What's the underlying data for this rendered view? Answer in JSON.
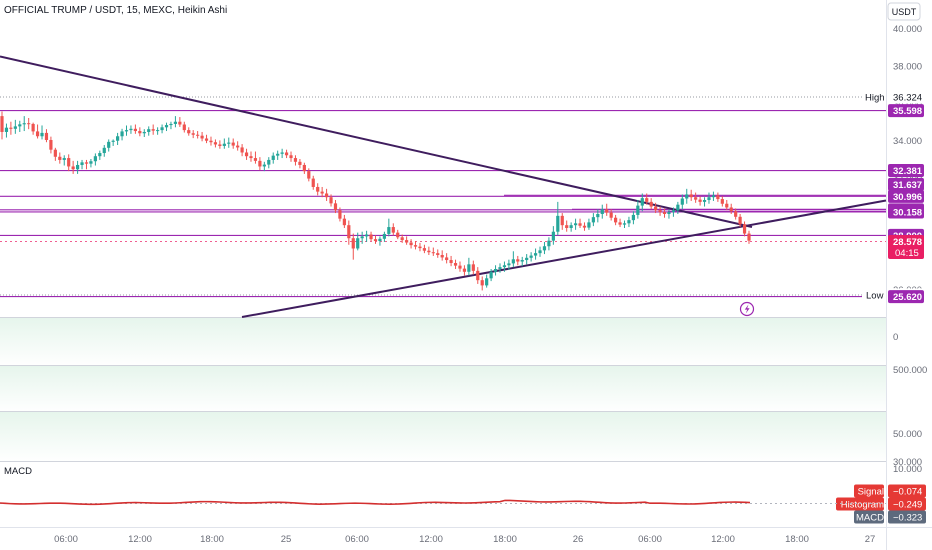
{
  "header": {
    "title": "OFFICIAL TRUMP / USDT, 15, MEXC, Heikin Ashi"
  },
  "currency_button": "USDT",
  "colors": {
    "up": "#26a69a",
    "down": "#ef5350",
    "level": "#9c27b0",
    "trend": "#3f1d5e",
    "macd": "#d32f2f",
    "price_label": "#e91e63",
    "band_green": "#e6f5ec"
  },
  "chart_data": [
    {
      "type": "candlestick",
      "title": "OFFICIAL TRUMP / USDT, 15, MEXC, Heikin Ashi",
      "y_ticks": [
        "40.000",
        "38.000",
        "36.000",
        "34.000",
        "32.000",
        "30.000",
        "28.000",
        "26.000"
      ],
      "ylim": [
        24.8,
        41
      ],
      "x_ticks": [
        "06:00",
        "12:00",
        "18:00",
        "25",
        "06:00",
        "12:00",
        "18:00",
        "26",
        "06:00",
        "12:00",
        "18:00",
        "27"
      ],
      "candles_ohlc": [
        [
          35.3,
          35.55,
          34.05,
          34.45
        ],
        [
          34.45,
          34.9,
          34.15,
          34.68
        ],
        [
          34.68,
          35.0,
          34.3,
          34.62
        ],
        [
          34.62,
          35.1,
          34.35,
          34.75
        ],
        [
          34.75,
          35.05,
          34.45,
          34.86
        ],
        [
          34.86,
          35.3,
          34.5,
          34.92
        ],
        [
          34.92,
          35.2,
          34.6,
          34.88
        ],
        [
          34.88,
          34.95,
          34.3,
          34.48
        ],
        [
          34.48,
          34.85,
          34.1,
          34.22
        ],
        [
          34.22,
          34.8,
          34.05,
          34.4
        ],
        [
          34.4,
          34.6,
          33.9,
          34.02
        ],
        [
          34.02,
          34.2,
          33.3,
          33.5
        ],
        [
          33.5,
          33.6,
          32.9,
          33.12
        ],
        [
          33.12,
          33.35,
          32.75,
          32.95
        ],
        [
          32.95,
          33.2,
          32.65,
          33.05
        ],
        [
          33.05,
          33.25,
          32.35,
          32.6
        ],
        [
          32.6,
          32.9,
          32.2,
          32.45
        ],
        [
          32.45,
          32.9,
          32.2,
          32.68
        ],
        [
          32.68,
          32.95,
          32.45,
          32.82
        ],
        [
          32.82,
          32.95,
          32.45,
          32.75
        ],
        [
          32.75,
          33.0,
          32.55,
          32.88
        ],
        [
          32.88,
          33.3,
          32.65,
          33.15
        ],
        [
          33.15,
          33.45,
          32.95,
          33.32
        ],
        [
          33.32,
          33.75,
          33.12,
          33.6
        ],
        [
          33.6,
          34.05,
          33.4,
          33.92
        ],
        [
          33.92,
          34.05,
          33.7,
          33.98
        ],
        [
          33.98,
          34.4,
          33.75,
          34.22
        ],
        [
          34.22,
          34.62,
          34.0,
          34.48
        ],
        [
          34.48,
          34.8,
          34.25,
          34.55
        ],
        [
          34.55,
          34.8,
          34.35,
          34.62
        ],
        [
          34.62,
          34.85,
          34.35,
          34.5
        ],
        [
          34.5,
          34.7,
          34.22,
          34.38
        ],
        [
          34.38,
          34.6,
          34.18,
          34.45
        ],
        [
          34.45,
          34.75,
          34.25,
          34.6
        ],
        [
          34.6,
          34.85,
          34.3,
          34.52
        ],
        [
          34.52,
          34.7,
          34.3,
          34.55
        ],
        [
          34.55,
          34.85,
          34.38,
          34.7
        ],
        [
          34.7,
          34.95,
          34.5,
          34.82
        ],
        [
          34.82,
          35.0,
          34.6,
          34.88
        ],
        [
          34.88,
          35.3,
          34.7,
          35.0
        ],
        [
          35.0,
          35.25,
          34.72,
          34.85
        ],
        [
          34.85,
          35.0,
          34.42,
          34.55
        ],
        [
          34.55,
          34.7,
          34.25,
          34.38
        ],
        [
          34.38,
          34.55,
          34.12,
          34.3
        ],
        [
          34.3,
          34.5,
          34.1,
          34.25
        ],
        [
          34.25,
          34.45,
          33.95,
          34.1
        ],
        [
          34.1,
          34.3,
          33.85,
          33.98
        ],
        [
          33.98,
          34.2,
          33.72,
          33.9
        ],
        [
          33.9,
          34.05,
          33.62,
          33.78
        ],
        [
          33.78,
          34.0,
          33.55,
          33.7
        ],
        [
          33.7,
          34.1,
          33.55,
          33.82
        ],
        [
          33.82,
          34.15,
          33.6,
          33.88
        ],
        [
          33.88,
          34.1,
          33.55,
          33.72
        ],
        [
          33.72,
          33.95,
          33.45,
          33.62
        ],
        [
          33.62,
          33.8,
          33.15,
          33.35
        ],
        [
          33.35,
          33.55,
          32.95,
          33.15
        ],
        [
          33.15,
          33.4,
          32.85,
          33.05
        ],
        [
          33.05,
          33.4,
          32.75,
          32.9
        ],
        [
          32.9,
          33.1,
          32.4,
          32.6
        ],
        [
          32.6,
          32.85,
          32.35,
          32.7
        ],
        [
          32.7,
          33.1,
          32.5,
          32.95
        ],
        [
          32.95,
          33.35,
          32.75,
          33.18
        ],
        [
          33.18,
          33.45,
          32.95,
          33.28
        ],
        [
          33.28,
          33.55,
          33.05,
          33.35
        ],
        [
          33.35,
          33.5,
          33.05,
          33.2
        ],
        [
          33.2,
          33.4,
          32.85,
          33.05
        ],
        [
          33.05,
          33.2,
          32.65,
          32.85
        ],
        [
          32.85,
          33.0,
          32.5,
          32.68
        ],
        [
          32.68,
          32.8,
          32.2,
          32.35
        ],
        [
          32.35,
          32.5,
          31.8,
          31.95
        ],
        [
          31.95,
          32.1,
          31.35,
          31.5
        ],
        [
          31.5,
          31.7,
          31.05,
          31.25
        ],
        [
          31.25,
          31.5,
          30.95,
          31.15
        ],
        [
          31.15,
          31.4,
          30.75,
          30.95
        ],
        [
          30.95,
          31.1,
          30.45,
          30.62
        ],
        [
          30.62,
          30.8,
          30.1,
          30.25
        ],
        [
          30.25,
          30.4,
          29.65,
          29.8
        ],
        [
          29.8,
          30.0,
          29.3,
          29.45
        ],
        [
          29.45,
          29.7,
          28.4,
          28.75
        ],
        [
          28.75,
          29.0,
          27.6,
          28.2
        ],
        [
          28.2,
          29.05,
          28.1,
          28.75
        ],
        [
          28.75,
          29.1,
          28.45,
          28.85
        ],
        [
          28.85,
          29.15,
          28.55,
          28.95
        ],
        [
          28.95,
          29.1,
          28.6,
          28.7
        ],
        [
          28.7,
          28.9,
          28.45,
          28.6
        ],
        [
          28.6,
          28.85,
          28.35,
          28.72
        ],
        [
          28.72,
          29.1,
          28.55,
          28.98
        ],
        [
          28.98,
          29.8,
          28.85,
          29.35
        ],
        [
          29.35,
          29.55,
          28.9,
          29.05
        ],
        [
          29.05,
          29.2,
          28.7,
          28.8
        ],
        [
          28.8,
          28.95,
          28.5,
          28.65
        ],
        [
          28.65,
          28.85,
          28.4,
          28.52
        ],
        [
          28.52,
          28.7,
          28.2,
          28.38
        ],
        [
          28.38,
          28.6,
          28.15,
          28.3
        ],
        [
          28.3,
          28.5,
          28.05,
          28.22
        ],
        [
          28.22,
          28.4,
          27.95,
          28.08
        ],
        [
          28.08,
          28.3,
          27.85,
          28.0
        ],
        [
          28.0,
          28.25,
          27.8,
          27.95
        ],
        [
          27.95,
          28.15,
          27.7,
          27.85
        ],
        [
          27.85,
          28.1,
          27.55,
          27.72
        ],
        [
          27.72,
          27.95,
          27.4,
          27.58
        ],
        [
          27.58,
          27.8,
          27.25,
          27.42
        ],
        [
          27.42,
          27.6,
          27.1,
          27.28
        ],
        [
          27.28,
          27.5,
          26.95,
          27.12
        ],
        [
          27.12,
          27.3,
          26.75,
          26.95
        ],
        [
          26.95,
          27.7,
          26.75,
          27.35
        ],
        [
          27.35,
          27.55,
          26.8,
          27.0
        ],
        [
          27.0,
          27.2,
          26.3,
          26.5
        ],
        [
          26.5,
          26.7,
          25.95,
          26.22
        ],
        [
          26.22,
          26.8,
          26.1,
          26.6
        ],
        [
          26.6,
          27.1,
          26.45,
          26.95
        ],
        [
          26.95,
          27.3,
          26.75,
          27.1
        ],
        [
          27.1,
          27.4,
          26.9,
          27.2
        ],
        [
          27.2,
          27.5,
          26.95,
          27.3
        ],
        [
          27.3,
          27.6,
          27.05,
          27.4
        ],
        [
          27.4,
          28.05,
          27.2,
          27.62
        ],
        [
          27.62,
          27.8,
          27.3,
          27.5
        ],
        [
          27.5,
          27.75,
          27.25,
          27.58
        ],
        [
          27.58,
          27.9,
          27.35,
          27.7
        ],
        [
          27.7,
          28.0,
          27.5,
          27.82
        ],
        [
          27.82,
          28.2,
          27.6,
          27.95
        ],
        [
          27.95,
          28.3,
          27.75,
          28.1
        ],
        [
          28.1,
          28.55,
          27.9,
          28.32
        ],
        [
          28.32,
          28.8,
          28.1,
          28.62
        ],
        [
          28.62,
          29.4,
          28.4,
          29.1
        ],
        [
          29.1,
          30.7,
          28.9,
          29.95
        ],
        [
          29.95,
          30.1,
          29.2,
          29.45
        ],
        [
          29.45,
          29.7,
          29.1,
          29.3
        ],
        [
          29.3,
          29.6,
          29.1,
          29.45
        ],
        [
          29.45,
          29.8,
          29.2,
          29.55
        ],
        [
          29.55,
          29.8,
          29.3,
          29.42
        ],
        [
          29.42,
          29.6,
          29.15,
          29.32
        ],
        [
          29.32,
          29.8,
          29.2,
          29.6
        ],
        [
          29.6,
          30.1,
          29.4,
          29.88
        ],
        [
          29.88,
          30.3,
          29.6,
          30.05
        ],
        [
          30.05,
          30.55,
          29.8,
          30.3
        ],
        [
          30.3,
          30.6,
          29.95,
          30.12
        ],
        [
          30.12,
          30.3,
          29.7,
          29.85
        ],
        [
          29.85,
          30.0,
          29.45,
          29.6
        ],
        [
          29.6,
          29.8,
          29.35,
          29.48
        ],
        [
          29.48,
          29.7,
          29.3,
          29.55
        ],
        [
          29.55,
          29.9,
          29.35,
          29.72
        ],
        [
          29.72,
          30.2,
          29.5,
          30.0
        ],
        [
          30.0,
          30.8,
          29.8,
          30.5
        ],
        [
          30.5,
          31.15,
          30.2,
          30.9
        ],
        [
          30.9,
          31.15,
          30.55,
          30.7
        ],
        [
          30.7,
          30.9,
          30.3,
          30.45
        ],
        [
          30.45,
          30.65,
          30.1,
          30.25
        ],
        [
          30.25,
          30.45,
          29.95,
          30.15
        ],
        [
          30.15,
          30.35,
          29.85,
          30.05
        ],
        [
          30.05,
          30.3,
          29.8,
          30.15
        ],
        [
          30.15,
          30.4,
          29.9,
          30.25
        ],
        [
          30.25,
          30.7,
          30.05,
          30.55
        ],
        [
          30.55,
          31.1,
          30.3,
          30.88
        ],
        [
          30.88,
          31.4,
          30.6,
          31.1
        ],
        [
          31.1,
          31.35,
          30.75,
          30.95
        ],
        [
          30.95,
          31.2,
          30.65,
          30.82
        ],
        [
          30.82,
          31.0,
          30.5,
          30.7
        ],
        [
          30.7,
          30.95,
          30.45,
          30.8
        ],
        [
          30.8,
          31.2,
          30.6,
          30.95
        ],
        [
          30.95,
          31.25,
          30.75,
          31.05
        ],
        [
          31.05,
          31.2,
          30.7,
          30.85
        ],
        [
          30.85,
          31.0,
          30.45,
          30.6
        ],
        [
          30.6,
          30.8,
          30.25,
          30.4
        ],
        [
          30.4,
          30.6,
          30.05,
          30.2
        ],
        [
          30.2,
          30.35,
          29.75,
          29.9
        ],
        [
          29.9,
          30.05,
          29.35,
          29.5
        ],
        [
          29.5,
          29.65,
          28.85,
          29.0
        ],
        [
          29.0,
          29.15,
          28.45,
          28.62
        ]
      ],
      "levels": [
        {
          "label": "35.598",
          "value": 35.598
        },
        {
          "label": "32.381",
          "value": 32.381
        },
        {
          "label": "30.996",
          "value": 30.996
        },
        {
          "label": "30.273",
          "value": 30.273
        },
        {
          "label": "30.158",
          "value": 30.158
        },
        {
          "label": "28.900",
          "value": 28.9
        },
        {
          "label": "25.620",
          "value": 25.62
        }
      ],
      "high": {
        "label": "High",
        "value": "36.324"
      },
      "low": {
        "label": "Low",
        "value": "25.708"
      },
      "current_price": {
        "value": "28.578",
        "countdown": "04:15"
      },
      "extra_axis_labels": [
        "31.637"
      ]
    },
    {
      "type": "line",
      "title": "MACD",
      "y_ticks": [
        "10.000"
      ],
      "legend": [
        {
          "name": "Signal",
          "value": "−0.074"
        },
        {
          "name": "Histogram",
          "value": "−0.249"
        },
        {
          "name": "MACD",
          "value": "−0.323"
        }
      ]
    }
  ],
  "panels": {
    "volume_ticks": [
      "0",
      "500.000",
      "50.000",
      "30.000"
    ]
  }
}
